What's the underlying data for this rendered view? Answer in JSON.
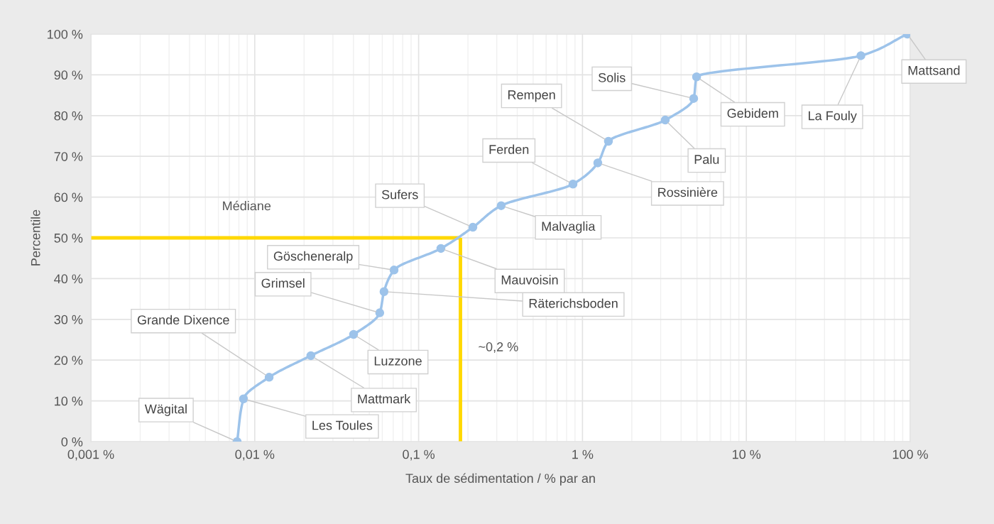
{
  "chart_data": {
    "type": "line",
    "xlabel": "Taux de sédimentation / % par an",
    "ylabel": "Percentile",
    "x": [
      0.0078,
      0.00854,
      0.01224,
      0.022,
      0.0401,
      0.0579,
      0.0615,
      0.0708,
      0.1368,
      0.2143,
      0.319,
      0.875,
      1.24,
      1.44,
      3.2,
      4.77,
      4.97,
      50,
      96
    ],
    "series": [
      {
        "color": "#9dc3ea",
        "values": [
          0,
          10.5,
          15.8,
          21.1,
          26.3,
          31.6,
          36.8,
          42.1,
          47.4,
          52.6,
          57.9,
          63.2,
          68.4,
          73.7,
          78.9,
          84.2,
          89.5,
          94.7,
          100
        ]
      }
    ],
    "marker": "circle",
    "log": "x",
    "grid": true,
    "xlim": [
      0.001,
      100
    ],
    "xticks": [
      {
        "value": 0.001,
        "label": "0,001 %"
      },
      {
        "value": 0.01,
        "label": "0,01 %"
      },
      {
        "value": 0.1,
        "label": "0,1 %"
      },
      {
        "value": 1,
        "label": "1 %"
      },
      {
        "value": 10,
        "label": "10 %"
      },
      {
        "value": 100,
        "label": "100 %"
      }
    ],
    "ylim": [
      0,
      100
    ],
    "yticks": [
      {
        "value": 0,
        "label": "0 %"
      },
      {
        "value": 10,
        "label": "10 %"
      },
      {
        "value": 20,
        "label": "20 %"
      },
      {
        "value": 30,
        "label": "30 %"
      },
      {
        "value": 40,
        "label": "40 %"
      },
      {
        "value": 50,
        "label": "50 %"
      },
      {
        "value": 60,
        "label": "60 %"
      },
      {
        "value": 70,
        "label": "70 %"
      },
      {
        "value": 80,
        "label": "80 %"
      },
      {
        "value": 90,
        "label": "90 %"
      },
      {
        "value": 100,
        "label": "100 %"
      }
    ],
    "ref_lines": [
      {
        "axis": "y",
        "value": 50,
        "label": "Médiane",
        "color": "#ffd800"
      },
      {
        "axis": "x",
        "value": 0.18,
        "label": "~0,2 %",
        "color": "#ffd800"
      }
    ],
    "annotations": [
      {
        "text": "Wägital",
        "x": 0.0078,
        "y": 0
      },
      {
        "text": "Les Toules",
        "x": 0.00854,
        "y": 10.5
      },
      {
        "text": "Grande Dixence",
        "x": 0.01224,
        "y": 15.8
      },
      {
        "text": "Mattmark",
        "x": 0.022,
        "y": 21.1
      },
      {
        "text": "Luzzone",
        "x": 0.0401,
        "y": 26.3
      },
      {
        "text": "Grimsel",
        "x": 0.0579,
        "y": 31.6
      },
      {
        "text": "Räterichsboden",
        "x": 0.0615,
        "y": 36.8
      },
      {
        "text": "Göscheneralp",
        "x": 0.0708,
        "y": 42.1
      },
      {
        "text": "Mauvoisin",
        "x": 0.1368,
        "y": 47.4
      },
      {
        "text": "Sufers",
        "x": 0.2143,
        "y": 52.6
      },
      {
        "text": "Malvaglia",
        "x": 0.319,
        "y": 57.9
      },
      {
        "text": "Ferden",
        "x": 0.875,
        "y": 63.2
      },
      {
        "text": "Rossinière",
        "x": 1.24,
        "y": 68.4
      },
      {
        "text": "Rempen",
        "x": 1.44,
        "y": 73.7
      },
      {
        "text": "Palu",
        "x": 3.2,
        "y": 78.9
      },
      {
        "text": "Solis",
        "x": 4.77,
        "y": 84.2
      },
      {
        "text": "Gebidem",
        "x": 4.97,
        "y": 89.5
      },
      {
        "text": "La Fouly",
        "x": 50,
        "y": 94.7
      },
      {
        "text": "Mattsand",
        "x": 96,
        "y": 100
      }
    ]
  }
}
